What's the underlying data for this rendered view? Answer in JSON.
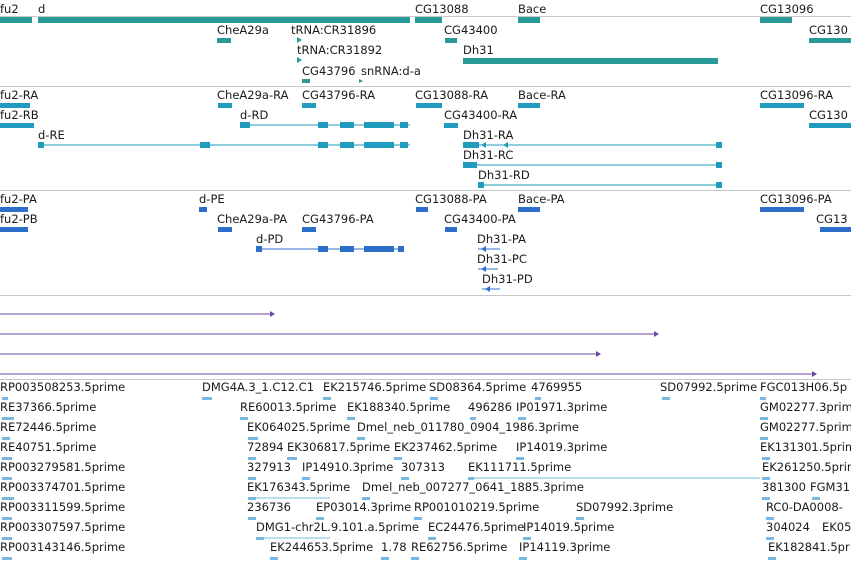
{
  "colors": {
    "gene": "#2a9a98",
    "transcript": "#1e9bbd",
    "protein": "#2f6fcc",
    "alignment": "#6a4aa0",
    "est": "#78b8e0",
    "divider": "#c8c8c8"
  },
  "tracks": {
    "genes": {
      "labels": [
        "fu2",
        "d",
        "CG13088",
        "Bace",
        "CG13096",
        "CheA29a",
        "tRNA:CR31896",
        "CG43400",
        "CG130",
        "tRNA:CR31892",
        "Dh31",
        "CG43796",
        "snRNA:d-a"
      ]
    },
    "transcripts": {
      "labels": [
        "fu2-RA",
        "CheA29a-RA",
        "CG43796-RA",
        "CG13088-RA",
        "Bace-RA",
        "CG13096-RA",
        "fu2-RB",
        "d-RD",
        "CG43400-RA",
        "CG130",
        "d-RE",
        "Dh31-RA",
        "Dh31-RC",
        "Dh31-RD"
      ]
    },
    "proteins": {
      "labels": [
        "fu2-PA",
        "d-PE",
        "CG13088-PA",
        "Bace-PA",
        "CG13096-PA",
        "fu2-PB",
        "CheA29a-PA",
        "CG43796-PA",
        "CG43400-PA",
        "CG13",
        "d-PD",
        "Dh31-PA",
        "Dh31-PC",
        "Dh31-PD"
      ]
    },
    "ests": {
      "labels": [
        "RP003508253.5prime",
        "DMG4A.3_1.C12.C1",
        "EK215746.5prime",
        "SD08364.5prime",
        "4769955",
        "SD07992.5prime",
        "FGC013H06.5p",
        "RE37366.5prime",
        "RE60013.5prime",
        "EK188340.5prime",
        "496286",
        "IP01971.3prime",
        "GM02277.3prime",
        "RE72446.5prime",
        "EK064025.5prime",
        "Dmel_neb_011780_0904_1986.3prime",
        "GM02277.5prime",
        "RE40751.5prime",
        "72894",
        "EK306817.5prime",
        "EK237462.5prime",
        "IP14019.3prime",
        "EK131301.5prime",
        "RP003279581.5prime",
        "327913",
        "IP14910.3prime",
        "307313",
        "EK111711.5prime",
        "EK261250.5prime",
        "RP003374701.5prime",
        "EK176343.5prime",
        "Dmel_neb_007277_0641_1885.3prime",
        "381300",
        "FGM31",
        "RP003311599.5prime",
        "236736",
        "EP03014.3prime",
        "RP001010219.5prime",
        "SD07992.3prime",
        "RC0-DA0008-",
        "RP003307597.5prime",
        "DMG1-chr2L.9.101.a.5prime",
        "EC24476.5prime",
        "IP14019.5prime",
        "304024",
        "EK05",
        "RP003143146.5prime",
        "EK244653.5prime",
        "1.78",
        "RE62756.5prime",
        "IP14119.3prime",
        "EK182841.5pr"
      ]
    }
  }
}
